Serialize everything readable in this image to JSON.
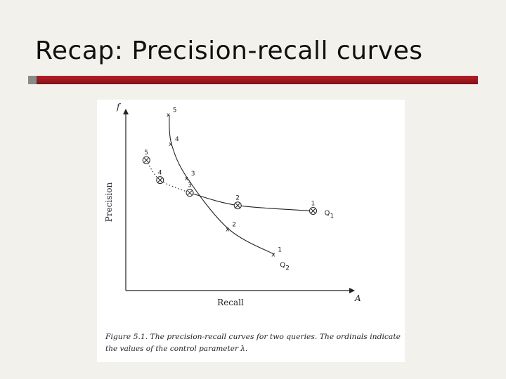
{
  "slide": {
    "title": "Recap: Precision-recall curves"
  },
  "colors": {
    "background": "#f3f1ec",
    "rule_bar": "#9a1820",
    "rule_square": "#8a8a8a",
    "ink": "#222222"
  },
  "chart_data": {
    "type": "line",
    "xlabel": "Recall",
    "ylabel": "Precision",
    "x_axis_symbol": "A",
    "y_axis_symbol": "f",
    "grid": false,
    "ticks": "none",
    "caption_line1": "Figure 5.1.  The precision-recall curves for two queries.  The ordinals indicate",
    "caption_line2": "the values of the control parameter λ.",
    "series": [
      {
        "name": "Q",
        "subscript": "1",
        "marker": "circled-x",
        "line_style": "dotted-to-solid",
        "points": [
          {
            "label": "5",
            "recall": 0.09,
            "precision": 0.72
          },
          {
            "label": "4",
            "recall": 0.15,
            "precision": 0.61
          },
          {
            "label": "3",
            "recall": 0.28,
            "precision": 0.54
          },
          {
            "label": "2",
            "recall": 0.49,
            "precision": 0.47
          },
          {
            "label": "1",
            "recall": 0.82,
            "precision": 0.44
          }
        ]
      },
      {
        "name": "Q",
        "subscript": "2",
        "marker": "x",
        "line_style": "solid",
        "points": [
          {
            "label": "5",
            "recall": 0.19,
            "precision": 0.97
          },
          {
            "label": "4",
            "recall": 0.2,
            "precision": 0.81
          },
          {
            "label": "3",
            "recall": 0.27,
            "precision": 0.62
          },
          {
            "label": "2",
            "recall": 0.45,
            "precision": 0.34
          },
          {
            "label": "1",
            "recall": 0.65,
            "precision": 0.2
          }
        ]
      }
    ]
  }
}
